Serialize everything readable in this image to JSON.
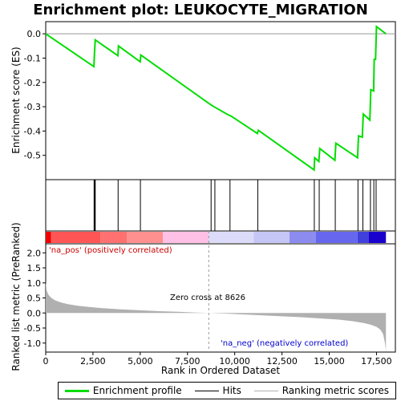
{
  "chart_data": {
    "type": "line",
    "title": "Enrichment plot: LEUKOCYTE_MIGRATION",
    "xlabel": "Rank in Ordered Dataset",
    "ylabel_top": "Enrichment score (ES)",
    "ylabel_bottom": "Ranked list metric (PreRanked)",
    "xlim": [
      0,
      18500
    ],
    "xticks": [
      0,
      2500,
      5000,
      7500,
      10000,
      12500,
      15000,
      17500
    ],
    "xtick_labels": [
      "0",
      "2,500",
      "5,000",
      "7,500",
      "10,000",
      "12,500",
      "15,000",
      "17,500"
    ],
    "es_ylim": [
      -0.6,
      0.05
    ],
    "es_yticks": [
      0.0,
      -0.1,
      -0.2,
      -0.3,
      -0.4,
      -0.5
    ],
    "es_ytick_labels": [
      "0.0",
      "-0.1",
      "-0.2",
      "-0.3",
      "-0.4",
      "-0.5"
    ],
    "enrichment_profile": {
      "x": [
        0,
        2550,
        2580,
        2620,
        3820,
        3850,
        5000,
        5030,
        8700,
        8900,
        9700,
        9800,
        11200,
        11250,
        14200,
        14230,
        14450,
        14500,
        15300,
        15350,
        16500,
        16550,
        16750,
        16800,
        17150,
        17200,
        17350,
        17380,
        17450,
        17500,
        18000
      ],
      "y": [
        0.0,
        -0.135,
        -0.08,
        -0.025,
        -0.09,
        -0.05,
        -0.115,
        -0.087,
        -0.29,
        -0.3,
        -0.335,
        -0.338,
        -0.41,
        -0.397,
        -0.56,
        -0.51,
        -0.525,
        -0.472,
        -0.52,
        -0.45,
        -0.51,
        -0.42,
        -0.425,
        -0.33,
        -0.355,
        -0.23,
        -0.235,
        -0.105,
        -0.105,
        0.03,
        0.0
      ]
    },
    "hits": [
      2560,
      2590,
      2620,
      3830,
      5010,
      8750,
      8950,
      9750,
      11220,
      14210,
      14470,
      15320,
      16520,
      16780,
      17180,
      17360,
      17480
    ],
    "metric_ylim": [
      -1.3,
      2.3
    ],
    "metric_yticks": [
      2.0,
      1.5,
      1.0,
      0.5,
      0.0,
      -0.5,
      -1.0
    ],
    "metric_ytick_labels": [
      "2.0",
      "1.5",
      "1.0",
      "0.5",
      "0.0",
      "-0.5",
      "-1.0"
    ],
    "ranked_metric": {
      "x": [
        0,
        50,
        150,
        300,
        500,
        800,
        1200,
        1700,
        2300,
        3000,
        4000,
        5000,
        6000,
        7000,
        8000,
        8626,
        9500,
        10500,
        11500,
        12500,
        13500,
        14500,
        15500,
        16200,
        16800,
        17200,
        17500,
        17700,
        17850,
        17950,
        18000
      ],
      "y": [
        1.05,
        0.75,
        0.6,
        0.5,
        0.42,
        0.35,
        0.29,
        0.24,
        0.2,
        0.16,
        0.12,
        0.09,
        0.06,
        0.04,
        0.015,
        0.0,
        -0.02,
        -0.05,
        -0.08,
        -0.11,
        -0.14,
        -0.18,
        -0.22,
        -0.27,
        -0.33,
        -0.39,
        -0.46,
        -0.55,
        -0.7,
        -1.0,
        -1.25
      ]
    },
    "zero_cross": 8626,
    "zero_cross_label": "Zero cross at 8626",
    "pos_label": "'na_pos' (positively correlated)",
    "neg_label": "'na_neg' (negatively correlated)",
    "color_bar_segments": [
      {
        "from": 0,
        "to": 280,
        "color": "#ee0000"
      },
      {
        "from": 280,
        "to": 2900,
        "color": "#ff5555"
      },
      {
        "from": 2900,
        "to": 4300,
        "color": "#ff7070"
      },
      {
        "from": 4300,
        "to": 6200,
        "color": "#ff9090"
      },
      {
        "from": 6200,
        "to": 8626,
        "color": "#ffc0e6"
      },
      {
        "from": 8626,
        "to": 11000,
        "color": "#dcdcfa"
      },
      {
        "from": 11000,
        "to": 12900,
        "color": "#c6c6f6"
      },
      {
        "from": 12900,
        "to": 14300,
        "color": "#8c8cf0"
      },
      {
        "from": 14300,
        "to": 16500,
        "color": "#6666ee"
      },
      {
        "from": 16500,
        "to": 17100,
        "color": "#4040dd"
      },
      {
        "from": 17100,
        "to": 18000,
        "color": "#1a00cc"
      }
    ],
    "colors": {
      "profile": "#00dd00",
      "hits": "#000000",
      "metric_fill": "#b0b0b0",
      "zero_cross_line": "#999999",
      "pos_label": "#cc0000",
      "neg_label": "#0000cc"
    },
    "legend": [
      {
        "label": "Enrichment profile",
        "color": "#00dd00",
        "style": "thick"
      },
      {
        "label": "Hits",
        "color": "#000000",
        "style": "thin"
      },
      {
        "label": "Ranking metric scores",
        "color": "#b0b0b0",
        "style": "thin"
      }
    ]
  }
}
